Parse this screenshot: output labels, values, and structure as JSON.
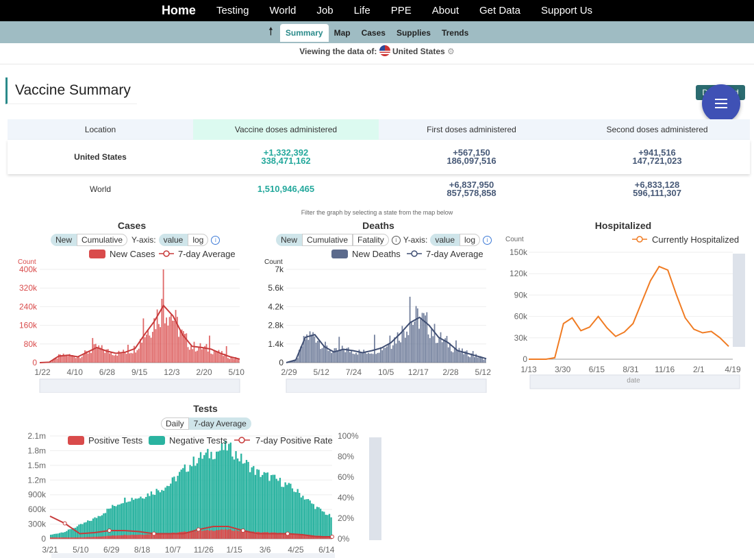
{
  "nav": {
    "items": [
      "Home",
      "Testing",
      "World",
      "Job",
      "Life",
      "PPE",
      "About",
      "Get Data",
      "Support Us"
    ]
  },
  "subnav": {
    "up_icon": "arrow-up-icon",
    "tabs": [
      "Summary",
      "Map",
      "Cases",
      "Supplies",
      "Trends"
    ],
    "active": "Summary"
  },
  "viewing": {
    "label": "Viewing the data of:",
    "country": "United States",
    "flag_icon": "us-flag-icon",
    "settings_icon": "gear-icon"
  },
  "page": {
    "title": "Vaccine Summary",
    "download_label": "Download Image"
  },
  "colors": {
    "accent": "#2a8a8a",
    "cases": "#d94b4b",
    "deaths": "#5b6a8c",
    "hosp": "#f07b22",
    "tests_neg": "#2ab3a0",
    "fab_menu": "#3f51b5",
    "fab_chat": "#1aa3b0"
  },
  "vaccine_table": {
    "headers": [
      "Location",
      "Vaccine doses administered",
      "First doses administered",
      "Second doses administered"
    ],
    "rows": [
      {
        "location": "United States",
        "doses_delta": "+1,332,392",
        "doses": "338,471,162",
        "first_delta": "+567,150",
        "first": "186,097,516",
        "second_delta": "+941,516",
        "second": "147,721,023"
      },
      {
        "location": "World",
        "doses_delta": "",
        "doses": "1,510,946,465",
        "first_delta": "+6,837,950",
        "first": "857,578,858",
        "second_delta": "+6,833,128",
        "second": "596,111,307"
      }
    ]
  },
  "filter_note": "Filter the graph by selecting a state from the map below",
  "cases_panel": {
    "title": "Cases",
    "toggle": [
      "New",
      "Cumulative"
    ],
    "yaxis_label": "Y-axis:",
    "yaxis_opts": [
      "value",
      "log"
    ],
    "info_icon": "info-icon"
  },
  "deaths_panel": {
    "title": "Deaths",
    "toggle": [
      "New",
      "Cumulative",
      "Fatality"
    ],
    "yaxis_label": "Y-axis:",
    "yaxis_opts": [
      "value",
      "log"
    ],
    "info_icon": "info-icon",
    "help_icon": "help-icon"
  },
  "hosp_panel": {
    "title": "Hospitalized"
  },
  "tests_panel": {
    "title": "Tests",
    "toggle": [
      "Daily",
      "7-day Average"
    ]
  },
  "chart_data": [
    {
      "type": "bar",
      "title": "Cases",
      "ylabel": "Count",
      "ylim": [
        0,
        400000
      ],
      "y_ticks": [
        "0",
        "80k",
        "160k",
        "240k",
        "320k",
        "400k"
      ],
      "x_ticks": [
        "1/22",
        "4/10",
        "6/28",
        "9/15",
        "12/3",
        "2/20",
        "5/10"
      ],
      "legend": [
        "New Cases",
        "7-day Average"
      ],
      "series": [
        {
          "name": "7-day Average",
          "values": [
            0,
            2000,
            28000,
            32000,
            25000,
            45000,
            65000,
            50000,
            40000,
            45000,
            60000,
            120000,
            175000,
            245000,
            200000,
            120000,
            70000,
            65000,
            58000,
            40000,
            25000,
            15000
          ]
        }
      ]
    },
    {
      "type": "bar",
      "title": "Deaths",
      "ylabel": "Count",
      "ylim": [
        0,
        7000
      ],
      "y_ticks": [
        "0",
        "1.4k",
        "2.8k",
        "4.2k",
        "5.6k",
        "7k"
      ],
      "x_ticks": [
        "2/29",
        "5/12",
        "7/24",
        "10/5",
        "12/17",
        "2/28",
        "5/12"
      ],
      "legend": [
        "New Deaths",
        "7-day Average"
      ],
      "series": [
        {
          "name": "7-day Average",
          "values": [
            0,
            200,
            1900,
            2100,
            1200,
            800,
            1000,
            900,
            750,
            900,
            1100,
            1500,
            2200,
            3000,
            3400,
            2800,
            1900,
            1500,
            900,
            700,
            500,
            300
          ]
        }
      ]
    },
    {
      "type": "line",
      "title": "Hospitalized",
      "ylabel": "Count",
      "xlabel": "date",
      "ylim": [
        0,
        150000
      ],
      "y_ticks": [
        "0",
        "30k",
        "60k",
        "90k",
        "120k",
        "150k"
      ],
      "x_ticks": [
        "1/13",
        "3/30",
        "6/15",
        "8/31",
        "11/16",
        "2/1",
        "4/19"
      ],
      "legend": [
        "Currently Hospitalized"
      ],
      "series": [
        {
          "name": "Currently Hospitalized",
          "values": [
            0,
            0,
            0,
            2000,
            50000,
            58000,
            40000,
            45000,
            60000,
            44000,
            32000,
            38000,
            50000,
            80000,
            110000,
            130000,
            125000,
            90000,
            58000,
            42000,
            37000,
            39000,
            30000,
            18000
          ]
        }
      ]
    },
    {
      "type": "bar",
      "title": "Tests",
      "ylim": [
        0,
        2100000
      ],
      "y_ticks": [
        "0",
        "300k",
        "600k",
        "900k",
        "1.2m",
        "1.5m",
        "1.8m",
        "2.1m"
      ],
      "y2_ticks": [
        "0%",
        "20%",
        "40%",
        "60%",
        "80%",
        "100%"
      ],
      "x_ticks": [
        "3/21",
        "5/10",
        "6/29",
        "8/18",
        "10/7",
        "11/26",
        "1/15",
        "3/6",
        "4/25",
        "6/14"
      ],
      "legend": [
        "Positive Tests",
        "Negative Tests",
        "7-day Positive Rate"
      ],
      "series": [
        {
          "name": "Negative Tests",
          "values": [
            80000,
            150000,
            280000,
            420000,
            620000,
            800000,
            850000,
            960000,
            1100000,
            1400000,
            1650000,
            1750000,
            1880000,
            1600000,
            1350000,
            1250000,
            1100000,
            900000,
            640000,
            450000
          ]
        },
        {
          "name": "7-day Positive Rate",
          "values": [
            0.22,
            0.15,
            0.05,
            0.06,
            0.08,
            0.08,
            0.07,
            0.05,
            0.05,
            0.05,
            0.09,
            0.12,
            0.12,
            0.08,
            0.05,
            0.05,
            0.05,
            0.04,
            0.02,
            0.02
          ]
        }
      ]
    }
  ]
}
